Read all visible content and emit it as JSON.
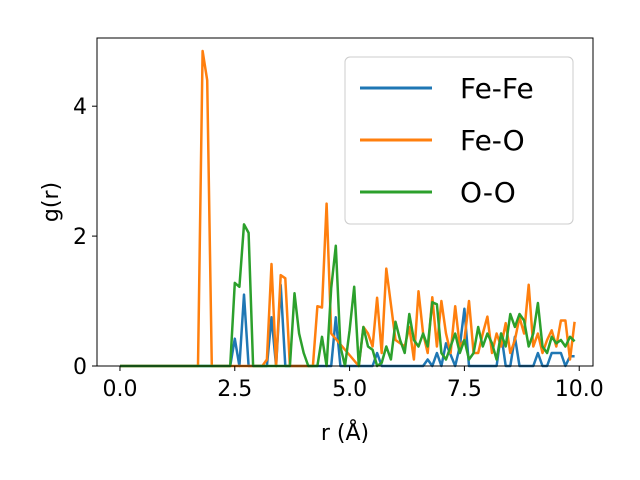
{
  "chart_data": {
    "type": "line",
    "xlabel": "r (Å)",
    "ylabel": "g(r)",
    "xlim": [
      -0.5,
      10.3
    ],
    "ylim": [
      0,
      5.05
    ],
    "xticks": [
      0.0,
      2.5,
      5.0,
      7.5,
      10.0
    ],
    "xtick_labels": [
      "0.0",
      "2.5",
      "5.0",
      "7.5",
      "10.0"
    ],
    "yticks": [
      0,
      2,
      4
    ],
    "ytick_labels": [
      "0",
      "2",
      "4"
    ],
    "grid": false,
    "legend_position": "top-right",
    "series": [
      {
        "name": "Fe-Fe",
        "color": "#1f77b4",
        "x": [
          0.0,
          2.4,
          2.5,
          2.6,
          2.7,
          2.8,
          3.2,
          3.3,
          3.4,
          3.5,
          3.6,
          3.7,
          3.8,
          4.6,
          4.7,
          4.8,
          5.5,
          5.6,
          5.7,
          5.8,
          6.0,
          6.6,
          6.7,
          6.8,
          6.9,
          7.0,
          7.1,
          7.3,
          7.4,
          7.5,
          7.6,
          7.7,
          8.2,
          8.3,
          8.4,
          8.5,
          8.6,
          8.7,
          9.0,
          9.1,
          9.2,
          9.3,
          9.4,
          9.6,
          9.7,
          9.8,
          9.9
        ],
        "y": [
          0,
          0,
          0.42,
          0,
          1.1,
          0,
          0,
          0.75,
          0,
          1.25,
          0,
          0,
          0,
          0,
          0.75,
          0,
          0,
          0.2,
          0,
          0,
          0,
          0,
          0.1,
          0,
          0.2,
          0,
          0.35,
          0,
          0.3,
          0.88,
          0,
          0,
          0,
          0.5,
          0,
          0,
          0.45,
          0,
          0,
          0.2,
          0,
          0,
          0.2,
          0.2,
          0,
          0.15,
          0.15
        ]
      },
      {
        "name": "Fe-O",
        "color": "#ff7f0e",
        "x": [
          0.0,
          1.7,
          1.8,
          1.9,
          2.0,
          3.1,
          3.2,
          3.3,
          3.4,
          3.5,
          3.6,
          3.7,
          4.2,
          4.3,
          4.4,
          4.5,
          4.6,
          5.2,
          5.3,
          5.4,
          5.5,
          5.6,
          5.7,
          5.8,
          6.0,
          6.2,
          6.3,
          6.4,
          6.5,
          6.6,
          6.7,
          6.8,
          6.9,
          7.0,
          7.1,
          7.2,
          7.3,
          7.4,
          7.5,
          7.6,
          7.7,
          7.8,
          7.9,
          8.0,
          8.1,
          8.2,
          8.3,
          8.4,
          8.5,
          8.6,
          8.7,
          8.8,
          8.9,
          9.0,
          9.1,
          9.2,
          9.3,
          9.4,
          9.5,
          9.6,
          9.7,
          9.8,
          9.9
        ],
        "y": [
          0,
          0,
          4.85,
          4.4,
          0,
          0,
          0.1,
          1.57,
          0,
          1.4,
          1.35,
          0,
          0,
          0.92,
          0.9,
          2.5,
          0.5,
          0,
          0.6,
          0.5,
          0.3,
          1.05,
          0.2,
          1.5,
          0.4,
          0.3,
          0.6,
          0.1,
          1.15,
          0.5,
          0.2,
          1.06,
          0.3,
          1.0,
          0.5,
          0.2,
          0.92,
          0.3,
          0.4,
          1.0,
          0.2,
          0.2,
          0.5,
          0.76,
          0.2,
          0.5,
          0.3,
          0.66,
          0.2,
          0.4,
          0.75,
          0.5,
          1.25,
          0.3,
          0.5,
          0.2,
          0.4,
          0.55,
          0.3,
          0.7,
          0.7,
          0.1,
          0.68
        ]
      },
      {
        "name": "O-O",
        "color": "#2ca02c",
        "x": [
          0.0,
          2.4,
          2.5,
          2.6,
          2.7,
          2.8,
          2.9,
          3.7,
          3.8,
          3.9,
          4.0,
          4.1,
          4.2,
          4.3,
          4.4,
          4.5,
          4.6,
          4.7,
          4.8,
          4.9,
          5.0,
          5.1,
          5.2,
          5.3,
          5.4,
          5.5,
          5.6,
          5.7,
          5.8,
          5.9,
          6.0,
          6.1,
          6.2,
          6.3,
          6.4,
          6.5,
          6.6,
          6.7,
          6.8,
          6.9,
          7.0,
          7.1,
          7.2,
          7.3,
          7.4,
          7.5,
          7.6,
          7.7,
          7.8,
          7.9,
          8.0,
          8.1,
          8.2,
          8.3,
          8.4,
          8.5,
          8.6,
          8.7,
          8.8,
          8.9,
          9.0,
          9.1,
          9.2,
          9.3,
          9.4,
          9.5,
          9.6,
          9.7,
          9.8,
          9.9
        ],
        "y": [
          0,
          0,
          1.28,
          1.22,
          2.18,
          2.05,
          0,
          0,
          1.12,
          0.5,
          0.2,
          0,
          0,
          0,
          0.45,
          0,
          1.2,
          1.85,
          0.3,
          0,
          0.55,
          1.22,
          0,
          0.6,
          0.3,
          0.25,
          0,
          0.05,
          0.3,
          0.1,
          0.68,
          0.4,
          0.2,
          0.8,
          0.4,
          0.3,
          0.5,
          0.3,
          0.98,
          0.95,
          0.2,
          0.1,
          0.3,
          0.5,
          0.2,
          0.4,
          0.1,
          0.2,
          0.6,
          0.3,
          0.5,
          0.35,
          0.1,
          0.5,
          0.3,
          0.8,
          0.6,
          0.8,
          0.7,
          0.3,
          0.5,
          0.97,
          0.3,
          0.2,
          0.45,
          0.35,
          0.4,
          0.3,
          0.45,
          0.38
        ]
      }
    ]
  }
}
